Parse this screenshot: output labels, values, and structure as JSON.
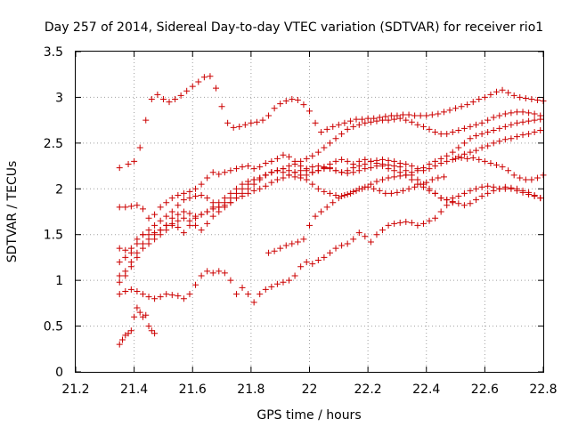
{
  "chart_data": {
    "type": "scatter",
    "title": "Day 257 of 2014, Sidereal Day-to-day VTEC variation (SDTVAR) for receiver rio1",
    "xlabel": "GPS time / hours",
    "ylabel": "SDTVAR / TECUs",
    "xlim": [
      21.2,
      22.8
    ],
    "ylim": [
      0,
      3.5
    ],
    "xticks": [
      "21.2",
      "21.4",
      "21.6",
      "21.8",
      "22",
      "22.2",
      "22.4",
      "22.6",
      "22.8"
    ],
    "yticks": [
      "0",
      "0.5",
      "1",
      "1.5",
      "2",
      "2.5",
      "3",
      "3.5"
    ],
    "grid": true,
    "marker": "+",
    "color": "#cc0000",
    "series": [
      {
        "x": [
          21.35,
          21.38,
          21.4,
          21.42,
          21.44,
          21.46,
          21.48,
          21.5,
          21.52,
          21.54,
          21.56,
          21.58,
          21.6,
          21.62,
          21.64,
          21.66,
          21.68,
          21.7,
          21.72,
          21.74,
          21.76,
          21.78,
          21.8,
          21.82,
          21.84,
          21.86,
          21.88,
          21.9,
          21.92,
          21.94,
          21.96,
          21.98,
          22.0,
          22.02,
          22.04,
          22.06,
          22.08,
          22.1,
          22.12,
          22.14,
          22.16,
          22.18,
          22.2,
          22.22,
          22.24,
          22.26,
          22.28,
          22.3,
          22.32,
          22.34,
          22.36,
          22.38,
          22.4,
          22.42,
          22.44,
          22.46,
          22.48,
          22.5,
          22.52,
          22.54,
          22.56,
          22.58,
          22.6,
          22.62,
          22.64,
          22.66,
          22.68,
          22.7,
          22.72,
          22.74,
          22.76,
          22.78,
          22.8
        ],
        "y": [
          2.23,
          2.27,
          2.3,
          2.45,
          2.75,
          2.98,
          3.03,
          2.98,
          2.95,
          2.98,
          3.02,
          3.07,
          3.12,
          3.17,
          3.22,
          3.23,
          3.1,
          2.9,
          2.72,
          2.67,
          2.68,
          2.7,
          2.72,
          2.73,
          2.75,
          2.8,
          2.88,
          2.93,
          2.96,
          2.98,
          2.97,
          2.92,
          2.85,
          2.72,
          2.62,
          2.65,
          2.68,
          2.7,
          2.72,
          2.74,
          2.76,
          2.76,
          2.77,
          2.77,
          2.78,
          2.79,
          2.8,
          2.8,
          2.81,
          2.81,
          2.8,
          2.8,
          2.8,
          2.81,
          2.82,
          2.84,
          2.86,
          2.88,
          2.9,
          2.92,
          2.95,
          2.98,
          3.0,
          3.03,
          3.06,
          3.08,
          3.05,
          3.02,
          3.0,
          2.99,
          2.98,
          2.97,
          2.96
        ]
      },
      {
        "x": [
          21.35,
          21.37,
          21.39,
          21.41,
          21.43,
          21.45,
          21.47,
          21.49,
          21.51,
          21.53,
          21.55,
          21.57,
          21.59,
          21.61,
          21.63,
          21.65,
          21.67,
          21.69,
          21.71,
          21.73,
          21.75,
          21.77,
          21.79,
          21.81,
          21.83,
          21.85,
          21.87,
          21.89,
          21.91,
          21.93,
          21.95,
          21.97,
          21.99,
          22.01,
          22.03,
          22.05,
          22.07,
          22.09,
          22.11,
          22.13,
          22.15,
          22.17,
          22.19,
          22.21,
          22.23,
          22.25,
          22.27,
          22.29,
          22.31,
          22.33,
          22.35,
          22.37,
          22.39,
          22.41,
          22.43,
          22.45,
          22.47,
          22.49,
          22.51,
          22.53,
          22.55,
          22.57,
          22.59,
          22.61,
          22.63,
          22.65,
          22.67,
          22.69,
          22.71,
          22.73,
          22.75,
          22.77,
          22.79
        ],
        "y": [
          1.8,
          1.8,
          1.81,
          1.82,
          1.78,
          1.68,
          1.72,
          1.8,
          1.85,
          1.9,
          1.93,
          1.95,
          1.97,
          2.0,
          2.05,
          2.12,
          2.18,
          2.16,
          2.18,
          2.2,
          2.22,
          2.24,
          2.25,
          2.22,
          2.24,
          2.28,
          2.3,
          2.33,
          2.37,
          2.35,
          2.3,
          2.25,
          2.2,
          2.18,
          2.2,
          2.23,
          2.27,
          2.3,
          2.32,
          2.3,
          2.27,
          2.3,
          2.32,
          2.3,
          2.28,
          2.25,
          2.22,
          2.2,
          2.18,
          2.15,
          2.1,
          2.05,
          2.02,
          1.98,
          1.95,
          1.9,
          1.88,
          1.9,
          1.92,
          1.95,
          1.98,
          2.0,
          2.02,
          2.03,
          2.02,
          2.0,
          2.0,
          2.01,
          2.0,
          1.98,
          1.96,
          1.93,
          1.9
        ]
      },
      {
        "x": [
          21.35,
          21.37,
          21.39,
          21.41,
          21.43,
          21.45,
          21.47,
          21.49,
          21.51,
          21.53,
          21.55,
          21.57,
          21.59,
          21.61,
          21.63,
          21.65,
          21.67,
          21.69,
          21.71,
          21.73,
          21.75,
          21.77,
          21.79,
          21.81,
          21.83,
          21.85,
          21.87,
          21.89,
          21.91,
          21.93,
          21.95,
          21.97,
          21.99,
          22.01,
          22.03,
          22.05,
          22.07,
          22.09,
          22.11,
          22.13,
          22.15,
          22.17,
          22.19,
          22.21,
          22.23,
          22.25,
          22.27,
          22.29,
          22.31,
          22.33,
          22.35,
          22.37,
          22.39,
          22.41,
          22.43,
          22.45,
          22.47,
          22.49,
          22.51,
          22.53,
          22.55,
          22.57,
          22.59,
          22.61,
          22.63,
          22.65,
          22.67,
          22.69,
          22.71,
          22.73,
          22.75,
          22.77,
          22.79
        ],
        "y": [
          1.35,
          1.33,
          1.3,
          1.4,
          1.5,
          1.55,
          1.6,
          1.65,
          1.7,
          1.75,
          1.82,
          1.88,
          1.9,
          1.92,
          1.93,
          1.9,
          1.85,
          1.8,
          1.82,
          1.85,
          1.9,
          1.95,
          2.0,
          2.05,
          2.1,
          2.15,
          2.18,
          2.2,
          2.22,
          2.2,
          2.18,
          2.15,
          2.1,
          2.05,
          2.0,
          1.97,
          1.95,
          1.93,
          1.92,
          1.94,
          1.97,
          2.0,
          2.02,
          2.05,
          2.08,
          2.1,
          2.12,
          2.13,
          2.14,
          2.15,
          2.18,
          2.2,
          2.23,
          2.27,
          2.3,
          2.33,
          2.36,
          2.4,
          2.45,
          2.5,
          2.55,
          2.58,
          2.6,
          2.62,
          2.64,
          2.66,
          2.68,
          2.7,
          2.72,
          2.73,
          2.74,
          2.75,
          2.76
        ]
      },
      {
        "x": [
          21.35,
          21.37,
          21.39,
          21.41,
          21.43,
          21.45,
          21.47,
          21.49,
          21.51,
          21.53,
          21.55,
          21.57,
          21.59,
          21.61,
          21.63,
          21.65,
          21.67,
          21.69,
          21.71,
          21.73,
          21.75,
          21.77,
          21.79,
          21.81,
          21.83,
          21.85,
          21.87,
          21.89,
          21.91,
          21.93,
          21.95,
          21.97,
          21.99,
          22.01,
          22.03,
          22.05,
          22.07,
          22.09,
          22.11,
          22.13,
          22.15,
          22.17,
          22.19,
          22.21,
          22.23,
          22.25,
          22.27,
          22.29,
          22.31,
          22.33,
          22.35,
          22.37,
          22.39,
          22.41,
          22.43,
          22.45,
          22.47,
          22.49,
          22.51,
          22.53,
          22.55,
          22.57,
          22.59,
          22.61,
          22.63,
          22.65,
          22.67,
          22.69,
          22.71,
          22.73,
          22.75,
          22.77,
          22.79
        ],
        "y": [
          1.2,
          1.25,
          1.35,
          1.45,
          1.5,
          1.5,
          1.52,
          1.55,
          1.6,
          1.68,
          1.72,
          1.75,
          1.73,
          1.7,
          1.72,
          1.75,
          1.78,
          1.8,
          1.85,
          1.9,
          1.95,
          2.0,
          2.05,
          2.1,
          2.12,
          2.15,
          2.18,
          2.2,
          2.22,
          2.25,
          2.27,
          2.3,
          2.33,
          2.36,
          2.4,
          2.45,
          2.5,
          2.55,
          2.6,
          2.65,
          2.68,
          2.7,
          2.72,
          2.73,
          2.74,
          2.75,
          2.75,
          2.76,
          2.77,
          2.75,
          2.73,
          2.7,
          2.68,
          2.65,
          2.62,
          2.6,
          2.6,
          2.62,
          2.64,
          2.66,
          2.68,
          2.7,
          2.72,
          2.75,
          2.78,
          2.8,
          2.82,
          2.83,
          2.84,
          2.84,
          2.83,
          2.82,
          2.8
        ]
      },
      {
        "x": [
          21.35,
          21.37,
          21.39,
          21.41,
          21.43,
          21.45,
          21.47,
          21.49,
          21.51,
          21.53,
          21.55,
          21.57,
          21.59,
          21.61,
          21.63,
          21.65,
          21.67,
          21.69,
          21.71,
          21.73,
          21.75,
          21.77,
          21.79,
          21.81,
          21.83,
          21.85,
          21.87,
          21.89,
          21.91,
          21.93,
          21.95,
          21.97,
          21.99,
          22.01,
          22.03,
          22.05,
          22.07,
          22.09,
          22.11,
          22.13,
          22.15,
          22.17,
          22.19,
          22.21,
          22.23,
          22.25,
          22.27,
          22.29,
          22.31,
          22.33,
          22.35,
          22.37,
          22.39,
          22.41,
          22.43,
          22.45,
          22.47,
          22.49,
          22.51,
          22.53,
          22.55,
          22.57,
          22.59,
          22.61,
          22.63,
          22.65,
          22.67,
          22.69,
          22.71,
          22.73,
          22.75,
          22.77,
          22.79
        ],
        "y": [
          1.05,
          1.1,
          1.2,
          1.3,
          1.4,
          1.45,
          1.5,
          1.55,
          1.6,
          1.62,
          1.58,
          1.52,
          1.6,
          1.68,
          1.72,
          1.75,
          1.8,
          1.85,
          1.9,
          1.95,
          2.0,
          2.05,
          2.08,
          2.1,
          2.12,
          2.15,
          2.18,
          2.2,
          2.18,
          2.15,
          2.13,
          2.12,
          2.15,
          2.18,
          2.2,
          2.22,
          2.23,
          2.2,
          2.18,
          2.2,
          2.23,
          2.25,
          2.27,
          2.3,
          2.31,
          2.32,
          2.31,
          2.3,
          2.28,
          2.27,
          2.25,
          2.22,
          2.2,
          2.22,
          2.25,
          2.28,
          2.3,
          2.32,
          2.35,
          2.38,
          2.4,
          2.42,
          2.45,
          2.47,
          2.5,
          2.52,
          2.54,
          2.55,
          2.57,
          2.59,
          2.6,
          2.62,
          2.64
        ]
      },
      {
        "x": [
          21.35,
          21.37,
          21.39,
          21.41,
          21.43,
          21.45,
          21.47,
          21.49,
          21.51,
          21.53,
          21.55,
          21.57,
          21.59,
          21.61,
          21.63,
          21.65,
          21.67,
          21.69,
          21.71,
          21.73,
          21.75,
          21.77,
          21.79,
          21.81,
          21.83,
          21.85,
          21.87,
          21.89,
          21.91,
          21.93,
          21.95,
          21.97,
          21.99,
          22.01,
          22.03,
          22.05,
          22.07,
          22.09,
          22.11,
          22.13,
          22.15,
          22.17,
          22.19,
          22.21,
          22.23,
          22.25,
          22.27,
          22.29,
          22.31,
          22.33,
          22.35,
          22.37,
          22.39,
          22.41,
          22.43,
          22.45,
          22.47,
          22.49,
          22.51,
          22.53,
          22.55,
          22.57,
          22.59,
          22.61,
          22.63,
          22.65,
          22.67,
          22.69,
          22.71,
          22.73,
          22.75,
          22.77,
          22.79
        ],
        "y": [
          0.98,
          1.05,
          1.15,
          1.25,
          1.35,
          1.4,
          1.45,
          1.5,
          1.55,
          1.6,
          1.65,
          1.68,
          1.65,
          1.6,
          1.55,
          1.62,
          1.7,
          1.75,
          1.8,
          1.85,
          1.9,
          1.92,
          1.95,
          1.98,
          2.0,
          2.03,
          2.07,
          2.1,
          2.12,
          2.15,
          2.18,
          2.2,
          2.22,
          2.24,
          2.25,
          2.24,
          2.22,
          2.2,
          2.18,
          2.17,
          2.18,
          2.2,
          2.22,
          2.23,
          2.25,
          2.27,
          2.26,
          2.25,
          2.24,
          2.2,
          2.15,
          2.1,
          2.05,
          2.0,
          1.95,
          1.9,
          1.88,
          1.86,
          1.84,
          1.82,
          1.84,
          1.88,
          1.92,
          1.95,
          1.98,
          2.0,
          2.02,
          2.0,
          1.98,
          1.96,
          1.94,
          1.92,
          1.9
        ]
      },
      {
        "x": [
          21.35,
          21.37,
          21.39,
          21.41,
          21.43,
          21.45,
          21.47,
          21.49,
          21.51,
          21.53,
          21.55,
          21.57,
          21.59,
          21.61,
          21.63,
          21.65,
          21.67,
          21.69,
          21.71,
          21.73,
          21.75,
          21.77,
          21.79,
          21.81,
          21.83,
          21.85,
          21.87,
          21.89,
          21.91,
          21.93,
          21.95,
          21.97,
          21.99,
          22.01,
          22.03,
          22.05,
          22.07,
          22.09,
          22.11,
          22.13,
          22.15,
          22.17,
          22.19,
          22.21,
          22.23,
          22.25,
          22.27,
          22.29,
          22.31,
          22.33,
          22.35,
          22.37,
          22.39,
          22.41,
          22.43,
          22.45,
          22.47,
          22.49
        ],
        "y": [
          0.85,
          0.88,
          0.9,
          0.88,
          0.85,
          0.82,
          0.8,
          0.82,
          0.85,
          0.84,
          0.83,
          0.8,
          0.85,
          0.95,
          1.05,
          1.1,
          1.08,
          1.1,
          1.08,
          1.0,
          0.85,
          0.92,
          0.85,
          0.76,
          0.85,
          0.9,
          0.93,
          0.96,
          0.98,
          1.0,
          1.05,
          1.15,
          1.2,
          1.18,
          1.22,
          1.25,
          1.3,
          1.35,
          1.38,
          1.4,
          1.45,
          1.52,
          1.48,
          1.42,
          1.5,
          1.55,
          1.6,
          1.62,
          1.63,
          1.64,
          1.63,
          1.6,
          1.62,
          1.65,
          1.68,
          1.75,
          1.82,
          1.85
        ]
      },
      {
        "x": [
          21.86,
          21.88,
          21.9,
          21.92,
          21.94,
          21.96,
          21.98,
          22.0,
          22.02,
          22.04,
          22.06,
          22.08,
          22.1,
          22.12,
          22.14,
          22.16,
          22.18,
          22.2,
          22.22,
          22.24,
          22.26,
          22.28,
          22.3,
          22.32,
          22.34,
          22.36,
          22.38,
          22.4,
          22.42,
          22.44,
          22.46
        ],
        "y": [
          1.3,
          1.32,
          1.35,
          1.38,
          1.4,
          1.42,
          1.45,
          1.6,
          1.7,
          1.75,
          1.8,
          1.85,
          1.9,
          1.93,
          1.95,
          1.98,
          2.0,
          2.02,
          2.0,
          1.98,
          1.95,
          1.95,
          1.96,
          1.98,
          2.0,
          2.02,
          2.05,
          2.07,
          2.1,
          2.12,
          2.13
        ]
      },
      {
        "x": [
          21.35,
          21.36,
          21.37,
          21.38,
          21.39,
          21.4,
          21.41,
          21.42,
          21.43,
          21.44,
          21.45,
          21.46,
          21.47
        ],
        "y": [
          0.3,
          0.35,
          0.4,
          0.42,
          0.45,
          0.6,
          0.7,
          0.65,
          0.6,
          0.62,
          0.5,
          0.45,
          0.42
        ]
      },
      {
        "x": [
          22.5,
          22.52,
          22.54,
          22.56,
          22.58,
          22.6,
          22.62,
          22.64,
          22.66,
          22.68,
          22.7,
          22.72,
          22.74,
          22.76,
          22.78,
          22.8
        ],
        "y": [
          2.33,
          2.34,
          2.33,
          2.34,
          2.32,
          2.3,
          2.28,
          2.26,
          2.24,
          2.2,
          2.15,
          2.12,
          2.1,
          2.1,
          2.12,
          2.15
        ]
      }
    ]
  }
}
